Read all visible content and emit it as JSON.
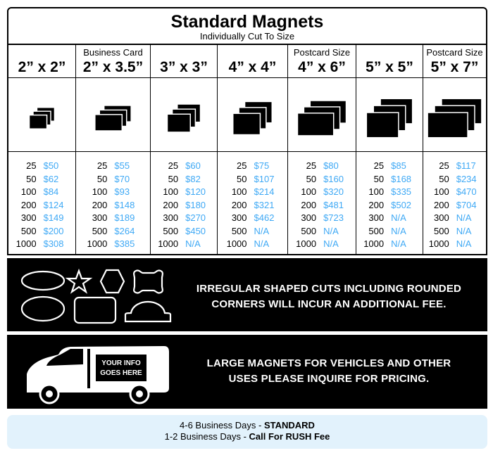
{
  "header": {
    "title": "Standard Magnets",
    "subtitle": "Individually Cut To Size"
  },
  "columns": [
    {
      "note": "",
      "size": "2” x 2”",
      "width": 96,
      "scale": 0.55,
      "prices": [
        [
          "25",
          "$50"
        ],
        [
          "50",
          "$62"
        ],
        [
          "100",
          "$84"
        ],
        [
          "200",
          "$124"
        ],
        [
          "300",
          "$149"
        ],
        [
          "500",
          "$200"
        ],
        [
          "1000",
          "$308"
        ]
      ]
    },
    {
      "note": "Business Card",
      "size": "2” x 3.5”",
      "width": 106,
      "scale": 0.65,
      "prices": [
        [
          "25",
          "$55"
        ],
        [
          "50",
          "$70"
        ],
        [
          "100",
          "$93"
        ],
        [
          "200",
          "$148"
        ],
        [
          "300",
          "$189"
        ],
        [
          "500",
          "$264"
        ],
        [
          "1000",
          "$385"
        ]
      ]
    },
    {
      "note": "",
      "size": "3” x 3”",
      "width": 95,
      "scale": 0.72,
      "prices": [
        [
          "25",
          "$60"
        ],
        [
          "50",
          "$82"
        ],
        [
          "100",
          "$120"
        ],
        [
          "200",
          "$180"
        ],
        [
          "300",
          "$270"
        ],
        [
          "500",
          "$450"
        ],
        [
          "1000",
          "N/A"
        ]
      ]
    },
    {
      "note": "",
      "size": "4” x 4”",
      "width": 100,
      "scale": 0.85,
      "prices": [
        [
          "25",
          "$75"
        ],
        [
          "50",
          "$107"
        ],
        [
          "100",
          "$214"
        ],
        [
          "200",
          "$321"
        ],
        [
          "300",
          "$462"
        ],
        [
          "500",
          "N/A"
        ],
        [
          "1000",
          "N/A"
        ]
      ]
    },
    {
      "note": "Postcard Size",
      "size": "4” x 6”",
      "width": 97,
      "scale": 0.9,
      "prices": [
        [
          "25",
          "$80"
        ],
        [
          "50",
          "$160"
        ],
        [
          "100",
          "$320"
        ],
        [
          "200",
          "$481"
        ],
        [
          "300",
          "$723"
        ],
        [
          "500",
          "N/A"
        ],
        [
          "1000",
          "N/A"
        ]
      ]
    },
    {
      "note": "",
      "size": "5” x 5”",
      "width": 95,
      "scale": 1.0,
      "prices": [
        [
          "25",
          "$85"
        ],
        [
          "50",
          "$168"
        ],
        [
          "100",
          "$335"
        ],
        [
          "200",
          "$502"
        ],
        [
          "300",
          "N/A"
        ],
        [
          "500",
          "N/A"
        ],
        [
          "1000",
          "N/A"
        ]
      ]
    },
    {
      "note": "Postcard Size",
      "size": "5” x 7”",
      "width": 89,
      "scale": 1.0,
      "prices": [
        [
          "25",
          "$117"
        ],
        [
          "50",
          "$234"
        ],
        [
          "100",
          "$470"
        ],
        [
          "200",
          "$704"
        ],
        [
          "300",
          "N/A"
        ],
        [
          "500",
          "N/A"
        ],
        [
          "1000",
          "N/A"
        ]
      ]
    }
  ],
  "irregular_panel": {
    "line1": "IRREGULAR SHAPED CUTS INCLUDING ROUNDED",
    "line2": "CORNERS WILL INCUR AN ADDITIONAL FEE."
  },
  "vehicle_panel": {
    "sign_line1": "YOUR INFO",
    "sign_line2": "GOES HERE",
    "line1": "LARGE MAGNETS FOR VEHICLES AND OTHER",
    "line2": "USES PLEASE INQUIRE FOR PRICING."
  },
  "footer": {
    "standard_days": "4-6 Business Days - ",
    "standard_label": "STANDARD",
    "rush_days": "1-2 Business Days - ",
    "rush_label": "Call For RUSH Fee"
  },
  "colors": {
    "price": "#3fa9f5",
    "footer_bg": "#e2f2fc",
    "panel_bg": "#000000"
  }
}
